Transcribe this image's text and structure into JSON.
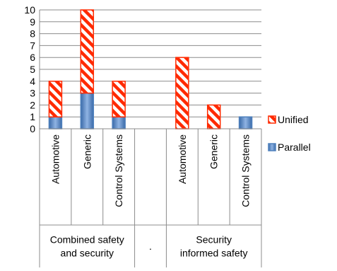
{
  "chart_data": {
    "type": "bar",
    "stacked": true,
    "title": "",
    "xlabel": "",
    "ylabel": "",
    "ylim": [
      0,
      10
    ],
    "yticks": [
      0,
      1,
      2,
      3,
      4,
      5,
      6,
      7,
      8,
      9,
      10
    ],
    "grid": true,
    "legend_position": "right",
    "categories": [
      "Automotive",
      "Generic",
      "Control Systems",
      "",
      "Automotive",
      "Generic",
      "Control Systems"
    ],
    "groups": [
      {
        "label_lines": [
          "Combined safety",
          "and security"
        ],
        "span": [
          0,
          2
        ]
      },
      {
        "label_lines": [
          "."
        ],
        "span": [
          3,
          3
        ]
      },
      {
        "label_lines": [
          "Security",
          "informed safety"
        ],
        "span": [
          4,
          6
        ]
      }
    ],
    "series": [
      {
        "name": "Parallel",
        "values": [
          1,
          3,
          1,
          0,
          0,
          0,
          1
        ],
        "color": "#4f81bd",
        "pattern": "solid"
      },
      {
        "name": "Unified",
        "values": [
          3,
          7,
          3,
          0,
          6,
          2,
          0
        ],
        "color": "#ff2a00",
        "pattern": "diagonal-stripes"
      }
    ],
    "legend_order": [
      "Unified",
      "Parallel"
    ]
  }
}
